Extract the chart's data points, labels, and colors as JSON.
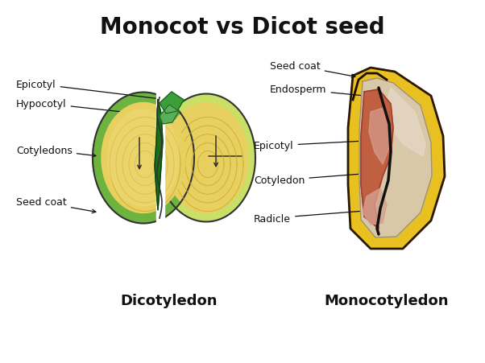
{
  "title": "Monocot vs Dicot seed",
  "title_fontsize": 20,
  "title_fontweight": "bold",
  "background_color": "#ffffff",
  "dicot_label": "Dicotyledon",
  "monocot_label": "Monocotyledon",
  "label_fontsize": 13,
  "label_fontweight": "bold",
  "annotation_fontsize": 9,
  "dicot_colors": {
    "outer_green": "#6db33f",
    "inner_green": "#8dc84a",
    "cotyledon_yellow": "#e8d060",
    "cotyledon_inner": "#f0dc80",
    "texture_line": "#c8a828",
    "embryo_dark_green": "#1a6e1a",
    "leaf_green": "#3a9e3a",
    "leaf_light": "#5ab05a",
    "spine_dark": "#116611",
    "outline": "#333333"
  },
  "monocot_colors": {
    "outer_yellow": "#e8c020",
    "outer_yellow_dark": "#d4a800",
    "endosperm_bg": "#d8c8a8",
    "endosperm_light": "#e8dccc",
    "embryo_red": "#c06040",
    "embryo_dark": "#a04030",
    "embryo_inner": "#b87060",
    "radicle_light": "#d4a090",
    "outline_dark": "#2a1800",
    "seed_coat_tan": "#c8b090"
  }
}
